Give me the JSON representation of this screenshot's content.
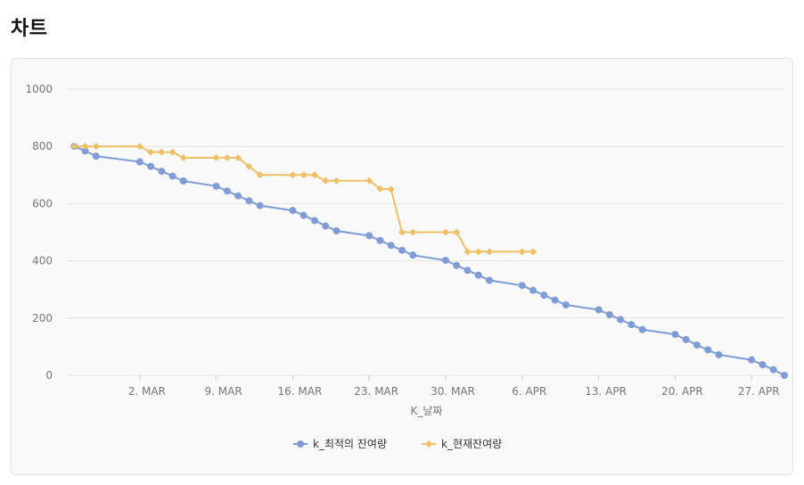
{
  "page": {
    "title": "차트"
  },
  "colors": {
    "series_optimal": "#7F9CD4",
    "series_current": "#EDC066",
    "grid": "#e4e4e4",
    "card_bg": "#f9f9f9"
  },
  "chart_data": {
    "type": "line",
    "title": "",
    "xlabel": "K_날짜",
    "ylabel": "",
    "ylim": [
      0,
      1000
    ],
    "yticks": [
      0,
      200,
      400,
      600,
      800,
      1000
    ],
    "xticks": [
      {
        "date": "2024-03-02",
        "label": "2. MAR"
      },
      {
        "date": "2024-03-09",
        "label": "9. MAR"
      },
      {
        "date": "2024-03-16",
        "label": "16. MAR"
      },
      {
        "date": "2024-03-23",
        "label": "23. MAR"
      },
      {
        "date": "2024-03-30",
        "label": "30. MAR"
      },
      {
        "date": "2024-04-06",
        "label": "6. APR"
      },
      {
        "date": "2024-04-13",
        "label": "13. APR"
      },
      {
        "date": "2024-04-20",
        "label": "20. APR"
      },
      {
        "date": "2024-04-27",
        "label": "27. APR"
      }
    ],
    "xlim": [
      "2024-02-24",
      "2024-04-30"
    ],
    "grid": true,
    "legend_position": "bottom-center",
    "series": [
      {
        "name": "k_최적의 잔여량",
        "marker": "circle",
        "points": [
          [
            "2024-02-25",
            800
          ],
          [
            "2024-02-26",
            784
          ],
          [
            "2024-02-27",
            766
          ],
          [
            "2024-03-02",
            746
          ],
          [
            "2024-03-03",
            730
          ],
          [
            "2024-03-04",
            713
          ],
          [
            "2024-03-05",
            696
          ],
          [
            "2024-03-06",
            679
          ],
          [
            "2024-03-09",
            661
          ],
          [
            "2024-03-10",
            644
          ],
          [
            "2024-03-11",
            627
          ],
          [
            "2024-03-12",
            610
          ],
          [
            "2024-03-13",
            593
          ],
          [
            "2024-03-16",
            576
          ],
          [
            "2024-03-17",
            559
          ],
          [
            "2024-03-18",
            541
          ],
          [
            "2024-03-19",
            522
          ],
          [
            "2024-03-20",
            505
          ],
          [
            "2024-03-23",
            488
          ],
          [
            "2024-03-24",
            471
          ],
          [
            "2024-03-25",
            454
          ],
          [
            "2024-03-26",
            437
          ],
          [
            "2024-03-27",
            420
          ],
          [
            "2024-03-30",
            402
          ],
          [
            "2024-03-31",
            384
          ],
          [
            "2024-04-01",
            367
          ],
          [
            "2024-04-02",
            350
          ],
          [
            "2024-04-03",
            332
          ],
          [
            "2024-04-06",
            314
          ],
          [
            "2024-04-07",
            297
          ],
          [
            "2024-04-08",
            280
          ],
          [
            "2024-04-09",
            263
          ],
          [
            "2024-04-10",
            246
          ],
          [
            "2024-04-13",
            229
          ],
          [
            "2024-04-14",
            212
          ],
          [
            "2024-04-15",
            195
          ],
          [
            "2024-04-16",
            177
          ],
          [
            "2024-04-17",
            160
          ],
          [
            "2024-04-20",
            143
          ],
          [
            "2024-04-21",
            125
          ],
          [
            "2024-04-22",
            106
          ],
          [
            "2024-04-23",
            89
          ],
          [
            "2024-04-24",
            72
          ],
          [
            "2024-04-27",
            54
          ],
          [
            "2024-04-28",
            37
          ],
          [
            "2024-04-29",
            20
          ],
          [
            "2024-04-30",
            0
          ]
        ]
      },
      {
        "name": "k_현재잔여량",
        "marker": "diamond",
        "points": [
          [
            "2024-02-25",
            800
          ],
          [
            "2024-02-26",
            800
          ],
          [
            "2024-02-27",
            800
          ],
          [
            "2024-03-02",
            800
          ],
          [
            "2024-03-03",
            780
          ],
          [
            "2024-03-04",
            780
          ],
          [
            "2024-03-05",
            780
          ],
          [
            "2024-03-06",
            760
          ],
          [
            "2024-03-09",
            760
          ],
          [
            "2024-03-10",
            760
          ],
          [
            "2024-03-11",
            760
          ],
          [
            "2024-03-12",
            730
          ],
          [
            "2024-03-13",
            700
          ],
          [
            "2024-03-16",
            700
          ],
          [
            "2024-03-17",
            700
          ],
          [
            "2024-03-18",
            700
          ],
          [
            "2024-03-19",
            680
          ],
          [
            "2024-03-20",
            680
          ],
          [
            "2024-03-23",
            680
          ],
          [
            "2024-03-24",
            652
          ],
          [
            "2024-03-25",
            650
          ],
          [
            "2024-03-26",
            500
          ],
          [
            "2024-03-27",
            500
          ],
          [
            "2024-03-30",
            500
          ],
          [
            "2024-03-31",
            500
          ],
          [
            "2024-04-01",
            432
          ],
          [
            "2024-04-02",
            432
          ],
          [
            "2024-04-03",
            432
          ],
          [
            "2024-04-06",
            432
          ],
          [
            "2024-04-07",
            432
          ]
        ]
      }
    ]
  }
}
